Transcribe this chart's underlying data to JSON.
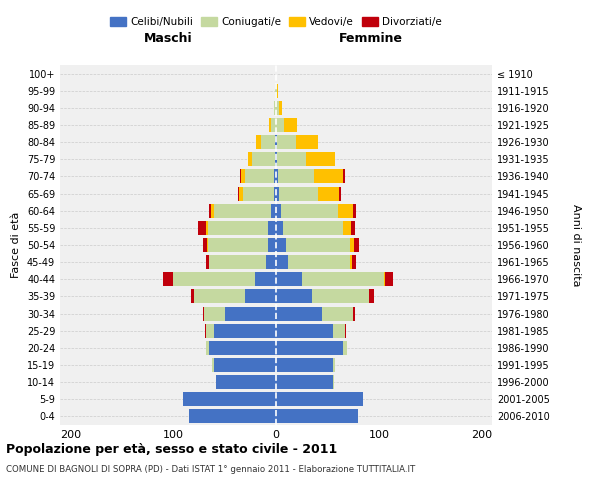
{
  "age_groups": [
    "0-4",
    "5-9",
    "10-14",
    "15-19",
    "20-24",
    "25-29",
    "30-34",
    "35-39",
    "40-44",
    "45-49",
    "50-54",
    "55-59",
    "60-64",
    "65-69",
    "70-74",
    "75-79",
    "80-84",
    "85-89",
    "90-94",
    "95-99",
    "100+"
  ],
  "birth_years": [
    "2006-2010",
    "2001-2005",
    "1996-2000",
    "1991-1995",
    "1986-1990",
    "1981-1985",
    "1976-1980",
    "1971-1975",
    "1966-1970",
    "1961-1965",
    "1956-1960",
    "1951-1955",
    "1946-1950",
    "1941-1945",
    "1936-1940",
    "1931-1935",
    "1926-1930",
    "1921-1925",
    "1916-1920",
    "1911-1915",
    "≤ 1910"
  ],
  "male": {
    "celibi": [
      85,
      90,
      58,
      60,
      65,
      60,
      50,
      30,
      20,
      10,
      8,
      8,
      5,
      2,
      2,
      1,
      1,
      0,
      0,
      0,
      0
    ],
    "coniugati": [
      0,
      0,
      0,
      2,
      3,
      8,
      20,
      50,
      80,
      55,
      58,
      58,
      55,
      30,
      28,
      22,
      14,
      5,
      2,
      1,
      0
    ],
    "vedovi": [
      0,
      0,
      0,
      0,
      0,
      0,
      0,
      0,
      0,
      0,
      1,
      2,
      3,
      4,
      4,
      4,
      4,
      2,
      0,
      0,
      0
    ],
    "divorziati": [
      0,
      0,
      0,
      0,
      0,
      1,
      1,
      3,
      10,
      3,
      4,
      8,
      2,
      1,
      1,
      0,
      0,
      0,
      0,
      0,
      0
    ]
  },
  "female": {
    "nubili": [
      80,
      85,
      55,
      55,
      65,
      55,
      45,
      35,
      25,
      12,
      10,
      7,
      5,
      3,
      2,
      1,
      1,
      0,
      0,
      0,
      0
    ],
    "coniugate": [
      0,
      0,
      1,
      2,
      4,
      12,
      30,
      55,
      80,
      60,
      62,
      58,
      55,
      38,
      35,
      28,
      18,
      8,
      3,
      1,
      0
    ],
    "vedove": [
      0,
      0,
      0,
      0,
      0,
      0,
      0,
      0,
      1,
      2,
      4,
      8,
      15,
      20,
      28,
      28,
      22,
      12,
      3,
      1,
      0
    ],
    "divorziate": [
      0,
      0,
      0,
      0,
      0,
      1,
      2,
      5,
      8,
      4,
      5,
      4,
      3,
      2,
      2,
      0,
      0,
      0,
      0,
      0,
      0
    ]
  },
  "colors": {
    "celibi": "#4472c4",
    "coniugati": "#c5d9a0",
    "vedovi": "#ffc000",
    "divorziati": "#c0000b"
  },
  "xlim": 210,
  "title": "Popolazione per età, sesso e stato civile - 2011",
  "subtitle": "COMUNE DI BAGNOLI DI SOPRA (PD) - Dati ISTAT 1° gennaio 2011 - Elaborazione TUTTITALIA.IT",
  "ylabel_left": "Fasce di età",
  "ylabel_right": "Anni di nascita",
  "header_left": "Maschi",
  "header_right": "Femmine"
}
